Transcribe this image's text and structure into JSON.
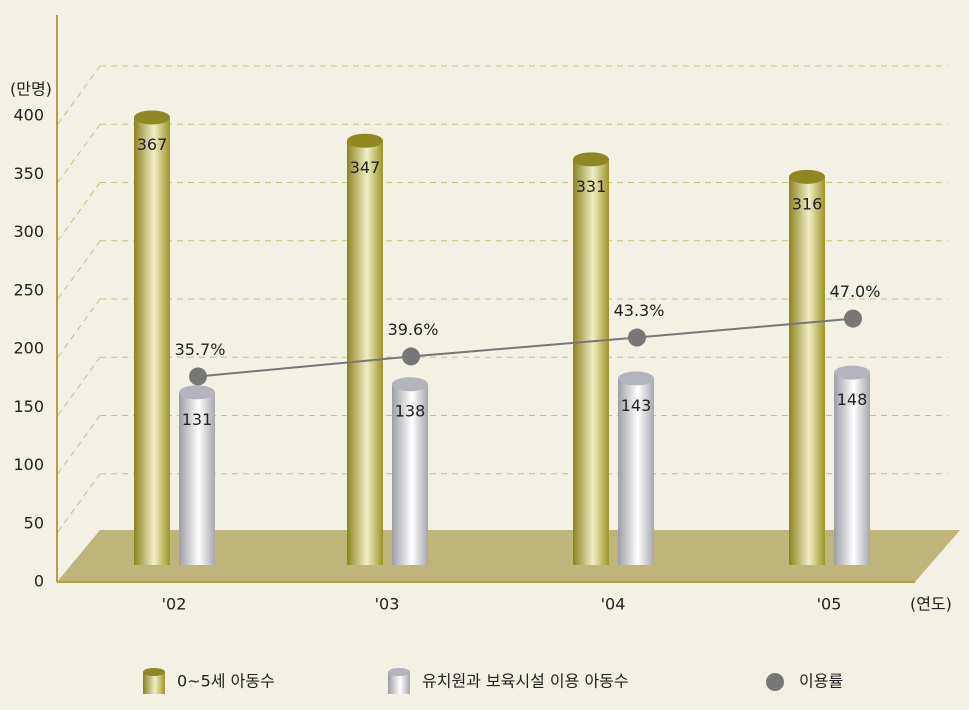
{
  "chart_data": {
    "type": "bar",
    "y_label": "(만명)",
    "x_label": "(연도)",
    "categories": [
      "'02",
      "'03",
      "'04",
      "'05"
    ],
    "series": [
      {
        "name": "0~5세 아동수",
        "color": "#a89f35",
        "values": [
          367,
          347,
          331,
          316
        ]
      },
      {
        "name": "유치원과 보육시설 이용 아동수",
        "color": "#c0c0c6",
        "values": [
          131,
          138,
          143,
          148
        ]
      },
      {
        "name": "이용률",
        "type": "line",
        "axis": "y2",
        "color": "#777777",
        "values": [
          35.7,
          39.6,
          43.3,
          47.0
        ],
        "value_labels": [
          "35.7%",
          "39.6%",
          "43.3%",
          "47.0%"
        ]
      }
    ],
    "ylim": [
      0,
      400
    ],
    "yticks": [
      0,
      50,
      100,
      150,
      200,
      250,
      300,
      350,
      400
    ],
    "y2lim": [
      -6,
      85
    ],
    "grid": true,
    "legend": "bottom"
  }
}
